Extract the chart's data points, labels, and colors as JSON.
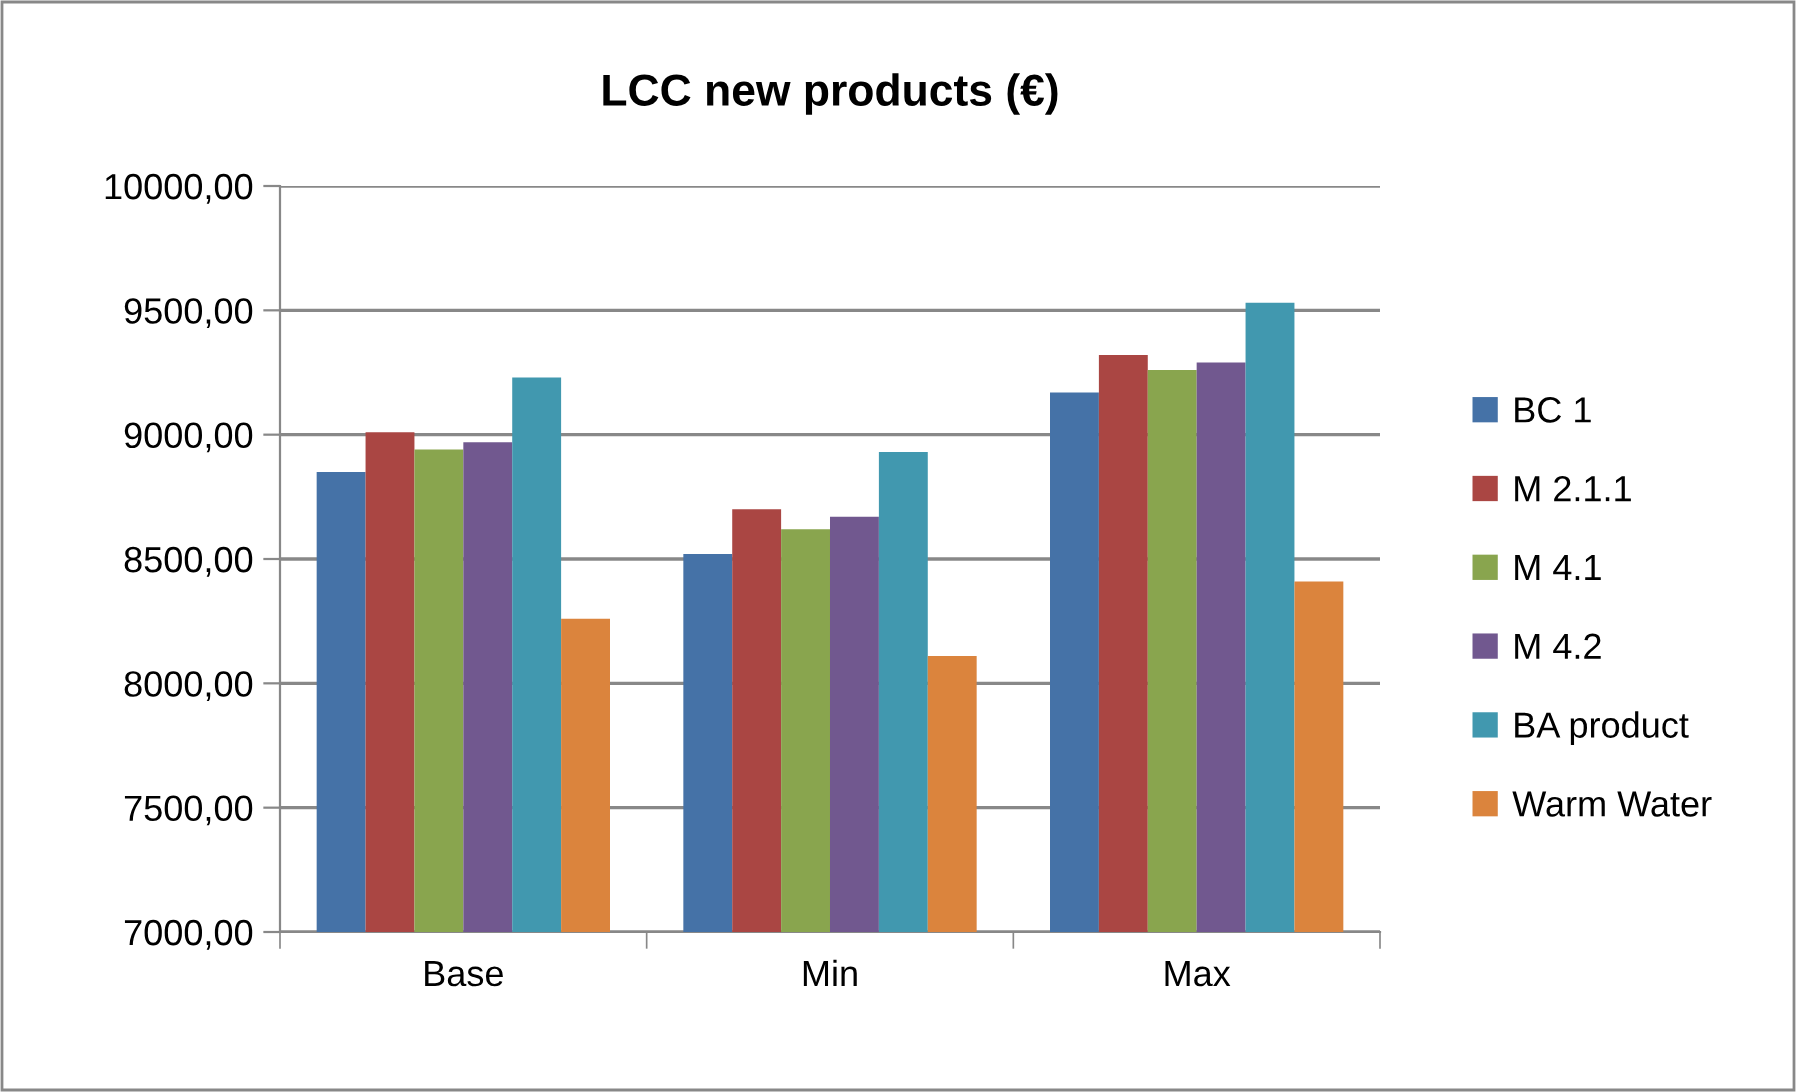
{
  "chart_data": {
    "type": "bar",
    "title": "LCC new products (€)",
    "categories": [
      "Base",
      "Min",
      "Max"
    ],
    "series": [
      {
        "name": "BC 1",
        "color": "#4572a7",
        "values": [
          8850,
          8520,
          9170
        ]
      },
      {
        "name": "M 2.1.1",
        "color": "#aa4643",
        "values": [
          9010,
          8700,
          9320
        ]
      },
      {
        "name": "M 4.1",
        "color": "#89a54e",
        "values": [
          8940,
          8620,
          9260
        ]
      },
      {
        "name": "M 4.2",
        "color": "#71588f",
        "values": [
          8970,
          8670,
          9290
        ]
      },
      {
        "name": "BA product",
        "color": "#4198af",
        "values": [
          9230,
          8930,
          9530
        ]
      },
      {
        "name": "Warm Water",
        "color": "#db843d",
        "values": [
          8260,
          8110,
          8410
        ]
      }
    ],
    "ylim": [
      7000,
      10000
    ],
    "yticks": [
      {
        "value": 7000,
        "label": "7000,00"
      },
      {
        "value": 7500,
        "label": "7500,00"
      },
      {
        "value": 8000,
        "label": "8000,00"
      },
      {
        "value": 8500,
        "label": "8500,00"
      },
      {
        "value": 9000,
        "label": "9000,00"
      },
      {
        "value": 9500,
        "label": "9500,00"
      },
      {
        "value": 10000,
        "label": "10000,00"
      }
    ],
    "grid": "y",
    "legend": "right"
  }
}
